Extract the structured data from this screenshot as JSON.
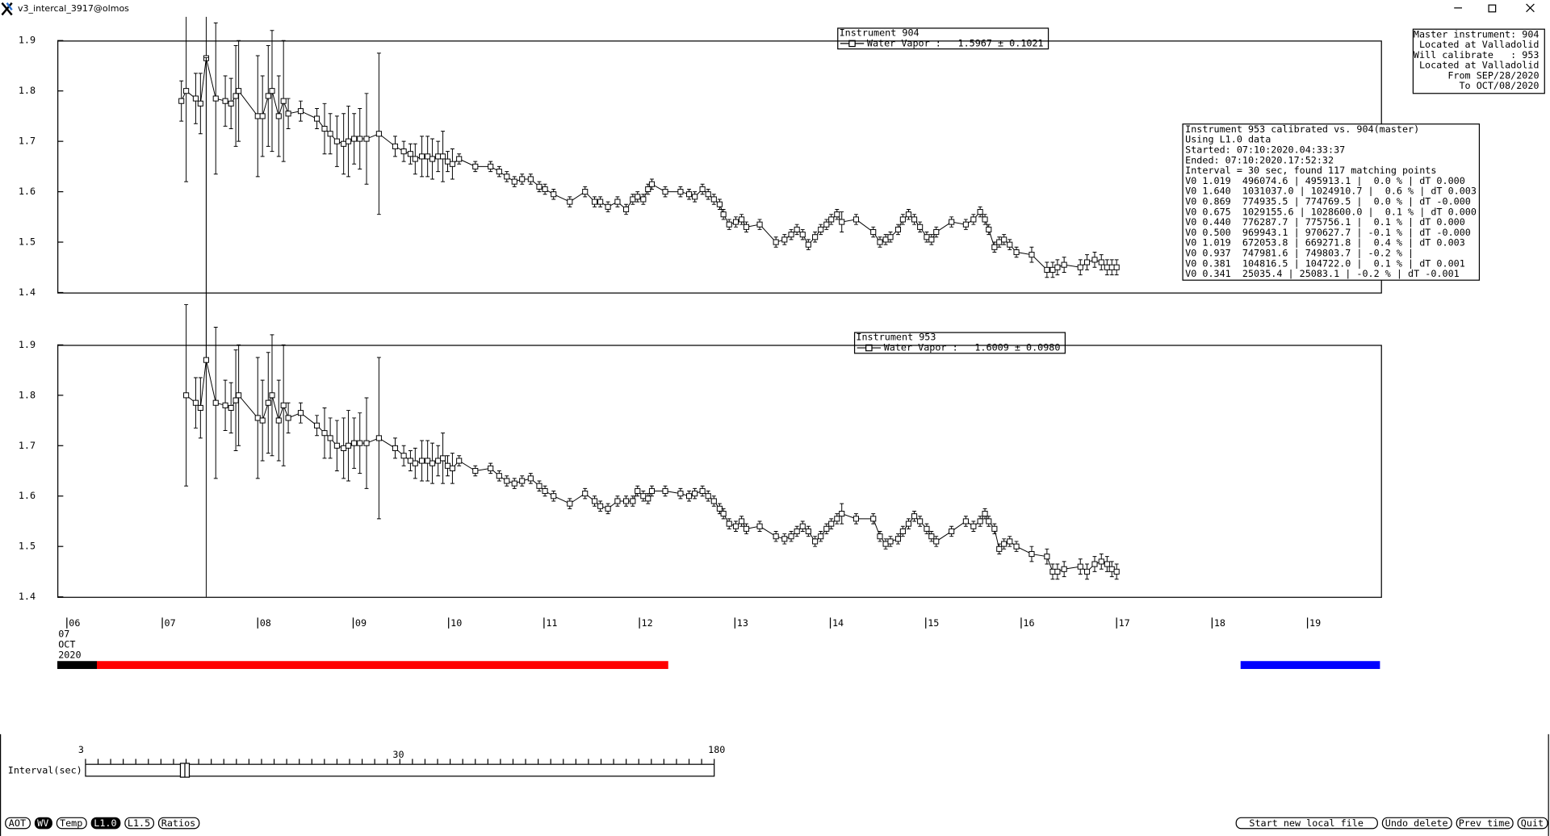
{
  "window": {
    "title": "v3_intercal_3917@olmos"
  },
  "chart_data": [
    {
      "type": "line",
      "title": "Instrument 904",
      "xlim": [
        5.9,
        19.77
      ],
      "ylim": [
        1.4,
        1.9
      ],
      "yticks": [
        1.4,
        1.5,
        1.6,
        1.7,
        1.8,
        1.9
      ],
      "series": [
        {
          "name": "Water Vapor :",
          "summary": "1.5967 ± 0.1021",
          "color": "#000000",
          "x": [
            7.2,
            7.25,
            7.35,
            7.4,
            7.46,
            7.56,
            7.66,
            7.72,
            7.77,
            7.8,
            8.0,
            8.05,
            8.11,
            8.15,
            8.22,
            8.27,
            8.32,
            8.45,
            8.62,
            8.7,
            8.76,
            8.83,
            8.9,
            8.95,
            9.01,
            9.07,
            9.14,
            9.27,
            9.44,
            9.53,
            9.6,
            9.65,
            9.72,
            9.78,
            9.83,
            9.89,
            9.94,
            9.99,
            10.04,
            10.11,
            10.28,
            10.44,
            10.53,
            10.61,
            10.69,
            10.77,
            10.86,
            10.95,
            11.01,
            11.1,
            11.27,
            11.43,
            11.53,
            11.59,
            11.67,
            11.77,
            11.86,
            11.93,
            11.98,
            12.04,
            12.09,
            12.13,
            12.27,
            12.43,
            12.52,
            12.58,
            12.66,
            12.72,
            12.78,
            12.84,
            12.88,
            12.94,
            13.01,
            13.07,
            13.12,
            13.26,
            13.43,
            13.52,
            13.59,
            13.65,
            13.71,
            13.77,
            13.84,
            13.9,
            13.96,
            14.01,
            14.07,
            14.12,
            14.27,
            14.45,
            14.52,
            14.58,
            14.63,
            14.71,
            14.76,
            14.82,
            14.88,
            14.94,
            15.01,
            15.06,
            15.11,
            15.27,
            15.42,
            15.5,
            15.57,
            15.62,
            15.66,
            15.72,
            15.77,
            15.82,
            15.88,
            15.95,
            16.11,
            16.27,
            16.33,
            16.38,
            16.45,
            16.62,
            16.69,
            16.77,
            16.84,
            16.9,
            16.95,
            17.0
          ],
          "values": [
            1.78,
            1.8,
            1.785,
            1.775,
            1.865,
            1.785,
            1.78,
            1.775,
            1.79,
            1.8,
            1.75,
            1.75,
            1.79,
            1.8,
            1.75,
            1.78,
            1.755,
            1.76,
            1.745,
            1.725,
            1.715,
            1.7,
            1.695,
            1.7,
            1.705,
            1.705,
            1.705,
            1.715,
            1.69,
            1.68,
            1.675,
            1.665,
            1.67,
            1.67,
            1.665,
            1.67,
            1.67,
            1.66,
            1.655,
            1.665,
            1.65,
            1.65,
            1.64,
            1.63,
            1.62,
            1.625,
            1.625,
            1.61,
            1.605,
            1.595,
            1.58,
            1.6,
            1.58,
            1.58,
            1.57,
            1.58,
            1.565,
            1.585,
            1.59,
            1.585,
            1.605,
            1.615,
            1.6,
            1.6,
            1.595,
            1.59,
            1.605,
            1.595,
            1.585,
            1.575,
            1.555,
            1.535,
            1.54,
            1.545,
            1.53,
            1.535,
            1.5,
            1.505,
            1.515,
            1.525,
            1.515,
            1.495,
            1.51,
            1.525,
            1.535,
            1.545,
            1.555,
            1.54,
            1.545,
            1.52,
            1.5,
            1.505,
            1.51,
            1.525,
            1.545,
            1.555,
            1.545,
            1.53,
            1.51,
            1.505,
            1.52,
            1.54,
            1.535,
            1.545,
            1.56,
            1.545,
            1.525,
            1.49,
            1.5,
            1.505,
            1.495,
            1.48,
            1.475,
            1.445,
            1.445,
            1.45,
            1.455,
            1.45,
            1.46,
            1.465,
            1.46,
            1.45,
            1.45,
            1.45
          ],
          "errors": [
            0.04,
            0.18,
            0.05,
            0.06,
            0.6,
            0.15,
            0.05,
            0.05,
            0.1,
            0.1,
            0.12,
            0.08,
            0.1,
            0.12,
            0.08,
            0.12,
            0.03,
            0.02,
            0.02,
            0.05,
            0.04,
            0.05,
            0.06,
            0.07,
            0.05,
            0.06,
            0.09,
            0.16,
            0.02,
            0.02,
            0.02,
            0.03,
            0.04,
            0.04,
            0.04,
            0.03,
            0.05,
            0.02,
            0.03,
            0.01,
            0.01,
            0.01,
            0.01,
            0.01,
            0.01,
            0.01,
            0.01,
            0.01,
            0.01,
            0.01,
            0.01,
            0.01,
            0.01,
            0.01,
            0.01,
            0.01,
            0.01,
            0.01,
            0.01,
            0.01,
            0.01,
            0.01,
            0.01,
            0.01,
            0.01,
            0.01,
            0.01,
            0.01,
            0.01,
            0.01,
            0.01,
            0.01,
            0.01,
            0.01,
            0.01,
            0.01,
            0.01,
            0.01,
            0.01,
            0.01,
            0.01,
            0.01,
            0.01,
            0.01,
            0.01,
            0.01,
            0.01,
            0.02,
            0.01,
            0.01,
            0.01,
            0.01,
            0.01,
            0.01,
            0.01,
            0.01,
            0.01,
            0.01,
            0.01,
            0.01,
            0.01,
            0.01,
            0.01,
            0.01,
            0.01,
            0.01,
            0.01,
            0.01,
            0.01,
            0.01,
            0.01,
            0.01,
            0.015,
            0.015,
            0.015,
            0.015,
            0.015,
            0.015,
            0.015,
            0.015,
            0.015,
            0.015,
            0.015,
            0.015
          ]
        }
      ]
    },
    {
      "type": "line",
      "title": "Instrument 953",
      "xlim": [
        5.9,
        19.77
      ],
      "ylim": [
        1.4,
        1.9
      ],
      "yticks": [
        1.4,
        1.5,
        1.6,
        1.7,
        1.8,
        1.9
      ],
      "xticks": [
        {
          "value": 6,
          "label": "06"
        },
        {
          "value": 7,
          "label": "07"
        },
        {
          "value": 8,
          "label": "08"
        },
        {
          "value": 9,
          "label": "09"
        },
        10,
        11,
        12,
        13,
        14,
        15,
        16,
        17,
        18,
        19
      ],
      "series": [
        {
          "name": "Water Vapor :",
          "summary": "1.6009 ± 0.0980",
          "color": "#000000",
          "x": [
            7.2,
            7.25,
            7.35,
            7.4,
            7.46,
            7.56,
            7.66,
            7.72,
            7.77,
            7.8,
            8.0,
            8.05,
            8.11,
            8.15,
            8.22,
            8.27,
            8.32,
            8.45,
            8.62,
            8.7,
            8.76,
            8.83,
            8.9,
            8.95,
            9.01,
            9.07,
            9.14,
            9.27,
            9.44,
            9.53,
            9.6,
            9.65,
            9.72,
            9.78,
            9.83,
            9.89,
            9.94,
            9.99,
            10.04,
            10.11,
            10.28,
            10.44,
            10.53,
            10.61,
            10.69,
            10.77,
            10.86,
            10.95,
            11.01,
            11.1,
            11.27,
            11.43,
            11.53,
            11.59,
            11.67,
            11.77,
            11.86,
            11.93,
            11.98,
            12.04,
            12.09,
            12.13,
            12.27,
            12.43,
            12.52,
            12.58,
            12.66,
            12.72,
            12.78,
            12.84,
            12.88,
            12.94,
            13.01,
            13.07,
            13.12,
            13.26,
            13.43,
            13.52,
            13.59,
            13.65,
            13.71,
            13.77,
            13.84,
            13.9,
            13.96,
            14.01,
            14.07,
            14.12,
            14.27,
            14.45,
            14.52,
            14.58,
            14.63,
            14.71,
            14.76,
            14.82,
            14.88,
            14.94,
            15.01,
            15.06,
            15.11,
            15.27,
            15.42,
            15.5,
            15.57,
            15.62,
            15.66,
            15.72,
            15.77,
            15.82,
            15.88,
            15.95,
            16.11,
            16.27,
            16.33,
            16.38,
            16.45,
            16.62,
            16.69,
            16.77,
            16.84,
            16.9,
            16.95,
            17.0
          ],
          "values": [
            null,
            1.8,
            1.785,
            1.775,
            1.87,
            1.785,
            1.78,
            1.775,
            1.79,
            1.8,
            1.755,
            1.75,
            1.785,
            1.8,
            1.75,
            1.78,
            1.755,
            1.765,
            1.74,
            1.725,
            1.715,
            1.7,
            1.695,
            1.7,
            1.705,
            1.705,
            1.705,
            1.715,
            1.695,
            1.68,
            1.67,
            1.665,
            1.67,
            1.67,
            1.665,
            1.67,
            1.675,
            1.66,
            1.655,
            1.67,
            1.65,
            1.655,
            1.64,
            1.63,
            1.625,
            1.63,
            1.635,
            1.62,
            1.61,
            1.6,
            1.585,
            1.605,
            1.59,
            1.58,
            1.575,
            1.59,
            1.59,
            1.59,
            1.61,
            1.6,
            1.595,
            1.61,
            1.61,
            1.605,
            1.6,
            1.605,
            1.61,
            1.6,
            1.59,
            1.575,
            1.565,
            1.545,
            1.54,
            1.55,
            1.535,
            1.54,
            1.52,
            1.515,
            1.52,
            1.53,
            1.54,
            1.53,
            1.51,
            1.52,
            1.535,
            1.545,
            1.555,
            1.565,
            1.555,
            1.555,
            1.52,
            1.505,
            1.51,
            1.515,
            1.53,
            1.545,
            1.56,
            1.55,
            1.535,
            1.52,
            1.51,
            1.53,
            1.55,
            1.54,
            1.55,
            1.565,
            1.55,
            1.535,
            1.495,
            1.505,
            1.51,
            1.5,
            1.485,
            1.48,
            1.45,
            1.45,
            1.455,
            1.46,
            1.45,
            1.465,
            1.47,
            1.465,
            1.455,
            1.45
          ],
          "errors": [
            null,
            0.18,
            0.05,
            0.06,
            0.6,
            0.15,
            0.05,
            0.05,
            0.1,
            0.1,
            0.12,
            0.08,
            0.1,
            0.12,
            0.08,
            0.12,
            0.03,
            0.02,
            0.02,
            0.05,
            0.04,
            0.05,
            0.06,
            0.07,
            0.05,
            0.06,
            0.09,
            0.16,
            0.02,
            0.02,
            0.02,
            0.03,
            0.04,
            0.04,
            0.04,
            0.03,
            0.05,
            0.02,
            0.03,
            0.01,
            0.01,
            0.01,
            0.01,
            0.01,
            0.01,
            0.01,
            0.01,
            0.01,
            0.01,
            0.01,
            0.01,
            0.01,
            0.01,
            0.01,
            0.01,
            0.01,
            0.01,
            0.01,
            0.01,
            0.01,
            0.01,
            0.01,
            0.01,
            0.01,
            0.01,
            0.01,
            0.01,
            0.01,
            0.01,
            0.01,
            0.01,
            0.01,
            0.01,
            0.01,
            0.01,
            0.01,
            0.01,
            0.01,
            0.01,
            0.01,
            0.01,
            0.01,
            0.01,
            0.01,
            0.01,
            0.01,
            0.01,
            0.02,
            0.01,
            0.01,
            0.01,
            0.01,
            0.01,
            0.01,
            0.01,
            0.01,
            0.01,
            0.01,
            0.01,
            0.01,
            0.01,
            0.01,
            0.01,
            0.01,
            0.01,
            0.01,
            0.01,
            0.01,
            0.01,
            0.01,
            0.01,
            0.01,
            0.015,
            0.015,
            0.015,
            0.015,
            0.015,
            0.015,
            0.015,
            0.015,
            0.015,
            0.015,
            0.015,
            0.015
          ]
        }
      ]
    }
  ],
  "date_label": [
    "07",
    "OCT",
    "2020"
  ],
  "master_box": [
    "Master instrument: 904",
    "Located at Valladolid",
    "Will calibrate   : 953",
    "Located at Valladolid",
    "From SEP/28/2020",
    "To OCT/08/2020"
  ],
  "report": [
    "Instrument 953 calibrated vs. 904(master)",
    "Using L1.0 data",
    "Started: 07:10:2020.04:33:37",
    "Ended: 07:10:2020.17:52:32",
    "Interval = 30 sec, found 117 matching points",
    "V0 1.019  496074.6 | 495913.1 |  0.0 % | dT 0.000",
    "V0 1.640  1031037.0 | 1024910.7 |  0.6 % | dT 0.003",
    "V0 0.869  774935.5 | 774769.5 |  0.0 % | dT -0.000",
    "V0 0.675  1029155.6 | 1028600.0 |  0.1 % | dT 0.000",
    "V0 0.440  776287.7 | 775756.1 |  0.1 % | dT 0.000",
    "V0 0.500  969943.1 | 970627.7 | -0.1 % | dT -0.000",
    "V0 1.019  672053.8 | 669271.8 |  0.4 % | dT 0.003",
    "V0 0.937  747981.6 | 749803.7 | -0.2 % |",
    "V0 0.381  104816.5 | 104722.0 |  0.1 % | dT 0.001",
    "V0 0.341  25035.4 | 25083.1 | -0.2 % | dT -0.001"
  ],
  "slider": {
    "label": "Interval(sec)",
    "tick_labels": [
      "3",
      "30",
      "180"
    ]
  },
  "buttons_left": [
    {
      "label": "AOT",
      "selected": false
    },
    {
      "label": "WV",
      "selected": true
    },
    {
      "label": "Temp",
      "selected": false
    },
    {
      "label": "L1.0",
      "selected": true
    },
    {
      "label": "L1.5",
      "selected": false
    },
    {
      "label": "Ratios",
      "selected": false
    }
  ],
  "buttons_right": [
    {
      "label": "Start new local file"
    },
    {
      "label": "Undo delete"
    },
    {
      "label": "Prev time"
    },
    {
      "label": "Quit"
    }
  ]
}
